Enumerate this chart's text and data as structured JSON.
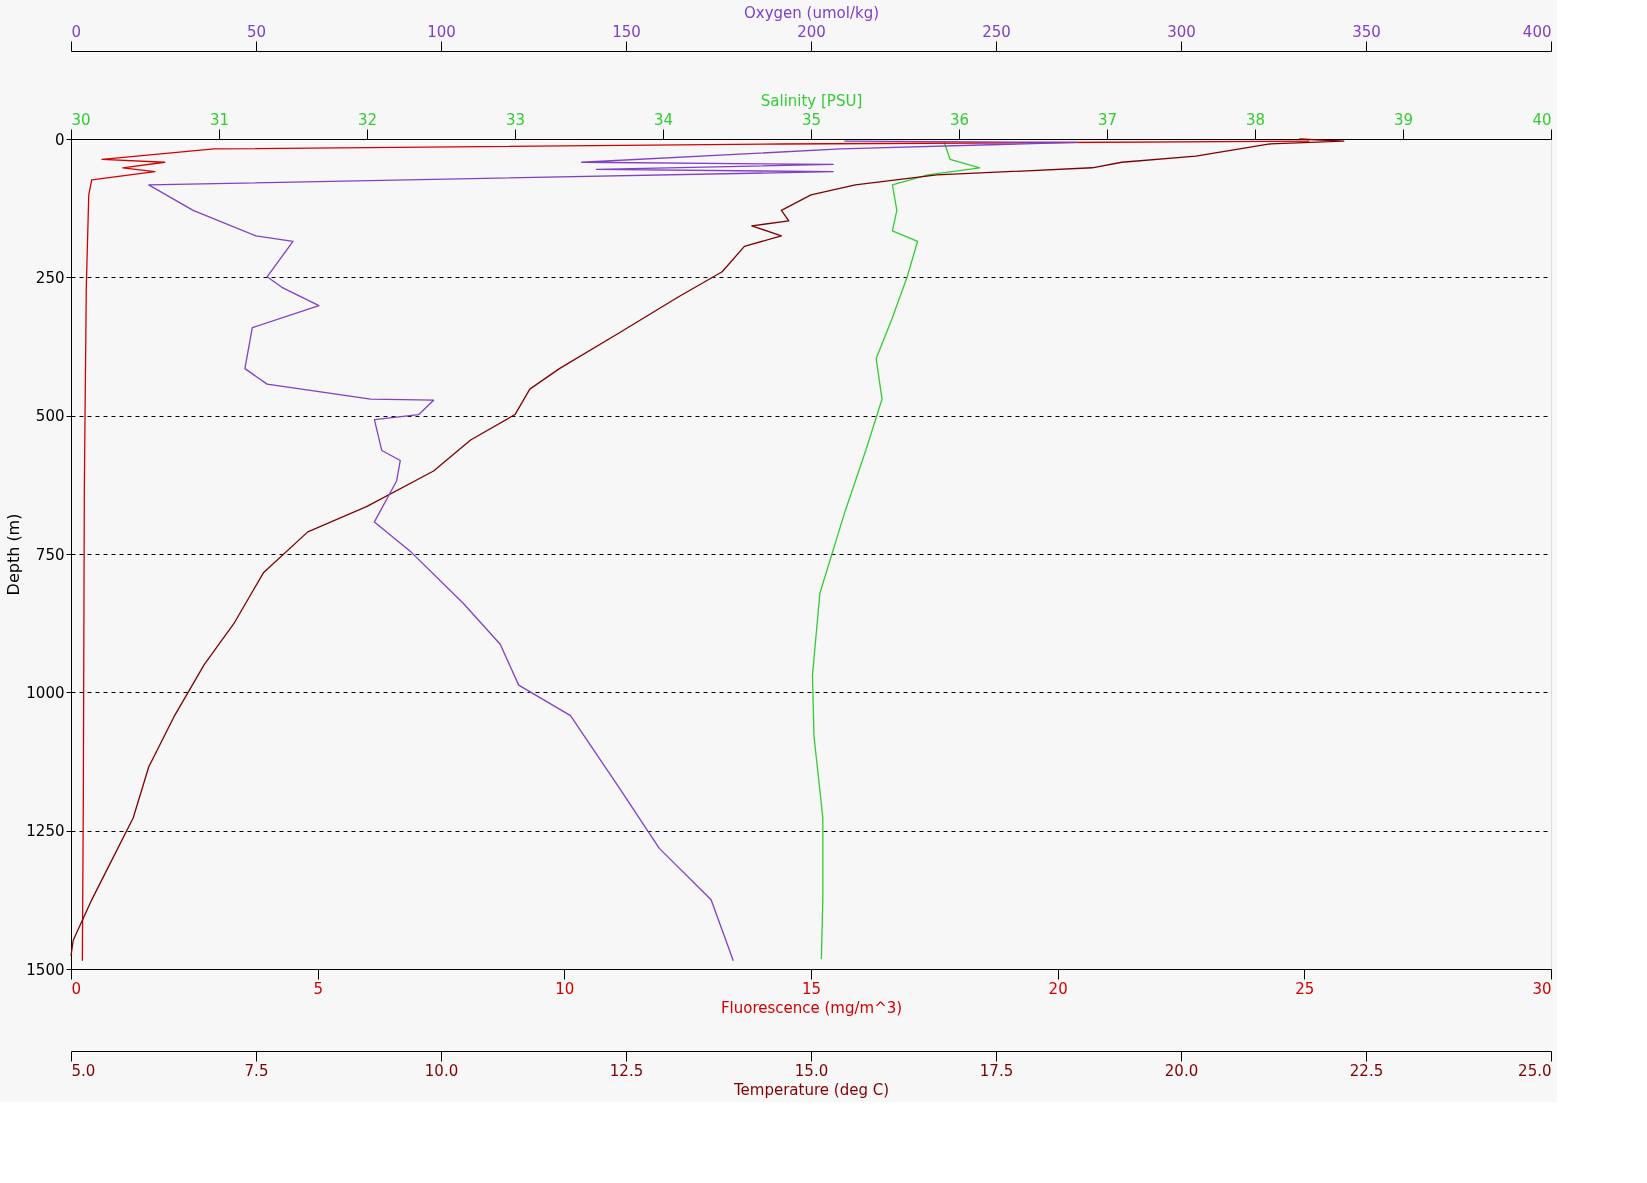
{
  "chart_data": [
    {
      "type": "line",
      "ylabel": "Depth (m)",
      "ylim": [
        1500,
        0
      ],
      "yticks": [
        0,
        250,
        500,
        750,
        1000,
        1250,
        1500
      ],
      "xlabel": "Fluorescence (mg/m^3)",
      "xlim": [
        0,
        30
      ],
      "xticks": [
        0,
        5,
        10,
        15,
        20,
        25,
        30
      ],
      "x2label": "Salinity [PSU]",
      "x2lim": [
        30,
        40
      ],
      "x2ticks": [
        30,
        31,
        32,
        33,
        34,
        35,
        36,
        37,
        38,
        39,
        40
      ],
      "grid": "y",
      "series": [
        {
          "axis": "x2",
          "color": "#33cc33",
          "x": [
            35.9,
            35.94,
            36.14,
            35.79,
            35.55,
            35.58,
            35.55,
            35.72,
            35.65,
            35.55,
            35.44,
            35.48,
            35.37,
            35.23,
            35.06,
            35.01,
            35.02,
            35.08,
            35.08,
            35.07
          ],
          "values": [
            6,
            37,
            52,
            65,
            83,
            129,
            166,
            185,
            249,
            323,
            397,
            470,
            563,
            673,
            821,
            969,
            1079,
            1227,
            1375,
            1482
          ]
        },
        {
          "color": "#d40000",
          "x": [
            25.1,
            14.4,
            2.9,
            0.63,
            1.9,
            1.05,
            1.7,
            0.42,
            0.36,
            0.31,
            0.27,
            0.25,
            0.23
          ],
          "values": [
            4,
            9,
            18,
            37,
            42,
            52,
            59,
            74,
            101,
            268,
            637,
            1190,
            1485
          ]
        }
      ]
    },
    {
      "type": "line",
      "ylim": [
        1500,
        0
      ],
      "tick_labels": "x",
      "xlabel": "Temperature (deg C)",
      "xlim": [
        5,
        25
      ],
      "xticks": [
        {
          "value": 5,
          "label": "5.0"
        },
        7.5,
        {
          "value": 10,
          "label": "10.0"
        },
        12.5,
        {
          "value": 15,
          "label": "15.0"
        },
        17.5,
        {
          "value": 20,
          "label": "20.0"
        },
        22.5,
        {
          "value": 25,
          "label": "25.0"
        }
      ],
      "x2label": "Oxygen (umol/kg)",
      "x2lim": [
        0,
        400
      ],
      "x2ticks": [
        0,
        50,
        100,
        150,
        200,
        250,
        300,
        350,
        400
      ],
      "series": [
        {
          "color": "#800000",
          "x": [
            21.6,
            22.2,
            21.2,
            20.2,
            19.2,
            18.8,
            16.7,
            15.6,
            15.0,
            14.6,
            14.7,
            14.2,
            14.6,
            14.1,
            13.8,
            13.2,
            12.4,
            11.6,
            11.2,
            11.0,
            10.4,
            9.9,
            9.0,
            8.2,
            7.6,
            7.2,
            6.8,
            6.4,
            6.05,
            5.84,
            5.56,
            5.28,
            5.03,
            5.0
          ],
          "values": [
            0,
            4,
            9,
            31,
            42,
            52,
            65,
            83,
            101,
            129,
            148,
            157,
            175,
            194,
            240,
            286,
            351,
            415,
            452,
            498,
            544,
            600,
            664,
            710,
            784,
            876,
            950,
            1042,
            1135,
            1227,
            1301,
            1375,
            1448,
            1476
          ]
        },
        {
          "axis": "x2",
          "color": "#8040c8",
          "x": [
            209,
            272,
            208,
            138,
            206,
            142,
            206,
            21,
            33,
            50,
            60,
            53,
            57,
            67,
            49,
            47,
            53,
            81,
            98,
            94,
            82,
            84,
            89,
            88,
            82,
            92,
            106,
            116,
            121,
            135,
            148,
            159,
            173,
            176,
            179
          ],
          "values": [
            4,
            6,
            18,
            42,
            46,
            55,
            59,
            83,
            129,
            175,
            185,
            249,
            268,
            301,
            341,
            415,
            443,
            470,
            472,
            498,
            507,
            563,
            581,
            618,
            692,
            747,
            839,
            913,
            987,
            1042,
            1171,
            1282,
            1375,
            1430,
            1485
          ]
        }
      ]
    }
  ]
}
